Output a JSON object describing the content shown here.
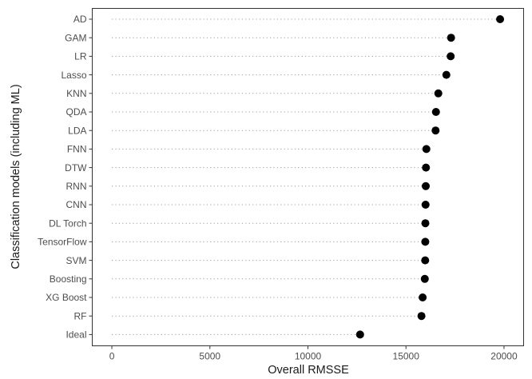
{
  "chart_data": {
    "type": "scatter",
    "title": "",
    "xlabel": "Overall RMSSE",
    "ylabel": "Classification models (including ML)",
    "xlim": [
      -1000,
      21000
    ],
    "xticks": [
      0,
      5000,
      10000,
      15000,
      20000
    ],
    "grid": false,
    "legend": "none",
    "point_color": "#000000",
    "guide_line_color": "#9e9e9e",
    "categories": [
      "AD",
      "GAM",
      "LR",
      "Lasso",
      "KNN",
      "QDA",
      "LDA",
      "FNN",
      "DTW",
      "RNN",
      "CNN",
      "DL Torch",
      "TensorFlow",
      "SVM",
      "Boosting",
      "XG Boost",
      "RF",
      "Ideal"
    ],
    "values": [
      19800,
      17300,
      17280,
      17060,
      16650,
      16530,
      16510,
      16040,
      16020,
      16010,
      16000,
      15990,
      15985,
      15980,
      15960,
      15850,
      15790,
      12660
    ]
  }
}
